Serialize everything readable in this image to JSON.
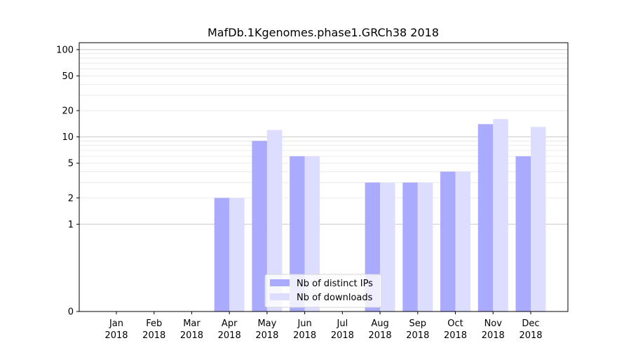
{
  "chart_data": {
    "type": "bar",
    "title": "MafDb.1Kgenomes.phase1.GRCh38 2018",
    "xlabel": "",
    "ylabel": "",
    "y_scale": "symlog",
    "ylim": [
      0,
      120
    ],
    "y_ticks": [
      {
        "value": 0,
        "label": "0"
      },
      {
        "value": 1,
        "label": "1"
      },
      {
        "value": 2,
        "label": "2"
      },
      {
        "value": 5,
        "label": "5"
      },
      {
        "value": 10,
        "label": "10"
      },
      {
        "value": 20,
        "label": "20"
      },
      {
        "value": 50,
        "label": "50"
      },
      {
        "value": 100,
        "label": "100"
      }
    ],
    "categories": [
      {
        "month": "Jan",
        "year": "2018"
      },
      {
        "month": "Feb",
        "year": "2018"
      },
      {
        "month": "Mar",
        "year": "2018"
      },
      {
        "month": "Apr",
        "year": "2018"
      },
      {
        "month": "May",
        "year": "2018"
      },
      {
        "month": "Jun",
        "year": "2018"
      },
      {
        "month": "Jul",
        "year": "2018"
      },
      {
        "month": "Aug",
        "year": "2018"
      },
      {
        "month": "Sep",
        "year": "2018"
      },
      {
        "month": "Oct",
        "year": "2018"
      },
      {
        "month": "Nov",
        "year": "2018"
      },
      {
        "month": "Dec",
        "year": "2018"
      }
    ],
    "series": [
      {
        "name": "Nb of distinct IPs",
        "color": "#aaaaff",
        "values": [
          0,
          0,
          0,
          2,
          9,
          6,
          0,
          3,
          3,
          4,
          14,
          6
        ]
      },
      {
        "name": "Nb of downloads",
        "color": "#ddddff",
        "values": [
          0,
          0,
          0,
          2,
          12,
          6,
          0,
          3,
          3,
          4,
          16,
          13
        ]
      }
    ],
    "grid": true,
    "legend_position": "bottom-center"
  }
}
